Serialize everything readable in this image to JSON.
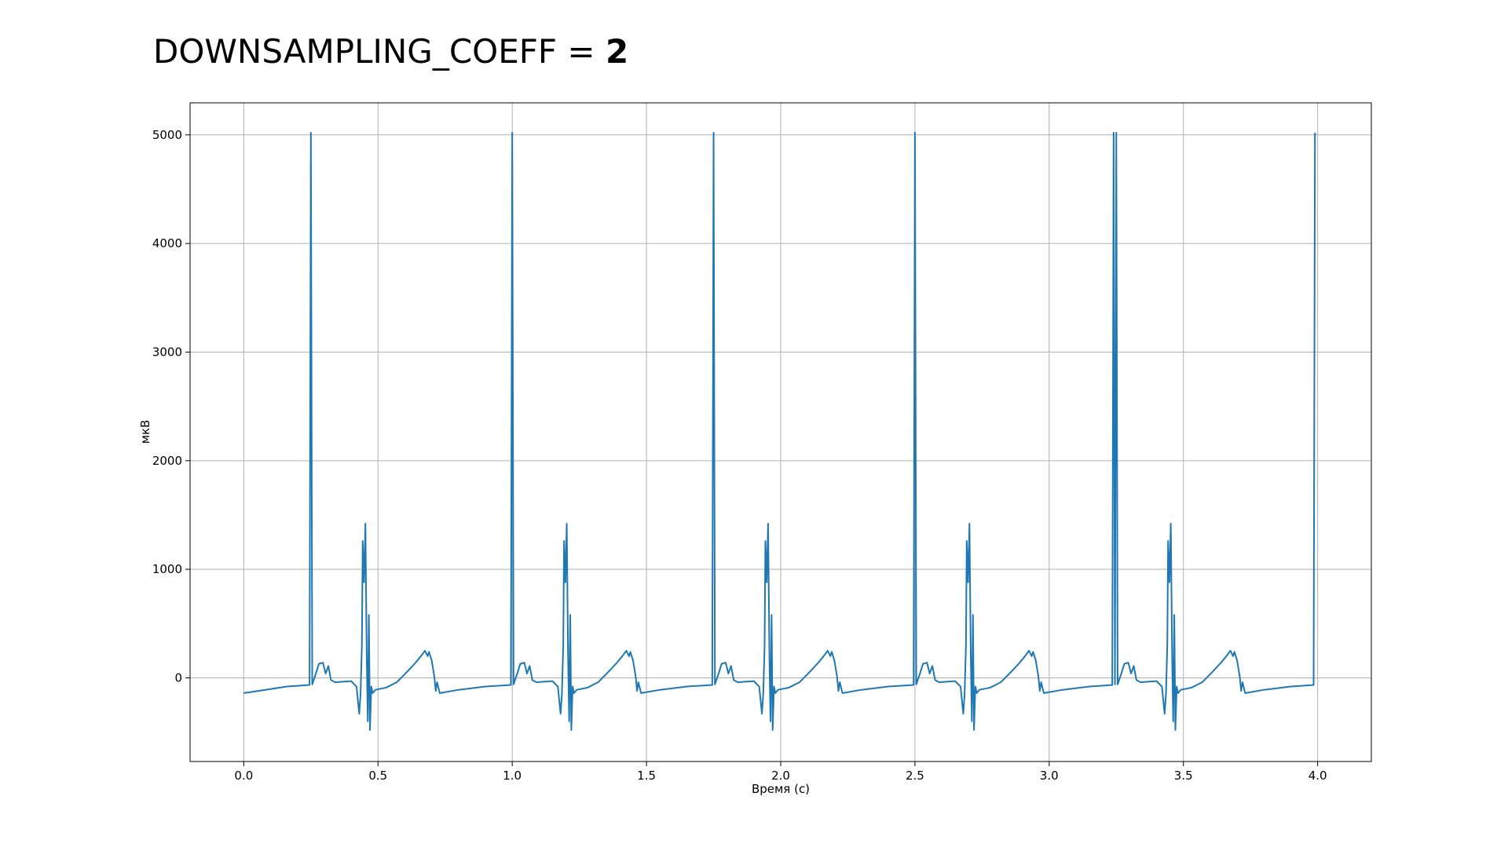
{
  "chart_data": {
    "type": "line",
    "title": "DOWNSAMPLING_COEFF = ",
    "title_value": 2,
    "x_label": "Время (с)",
    "y_label": "мкВ",
    "color": "#1f77b4",
    "grid": true,
    "xlim": [
      -0.2,
      4.2
    ],
    "ylim": [
      -770,
      5295
    ],
    "xticks": [
      {
        "value": 0,
        "label": "0.0"
      },
      0.5,
      {
        "value": 1,
        "label": "1.0"
      },
      1.5,
      {
        "value": 2,
        "label": "2.0"
      },
      2.5,
      {
        "value": 3,
        "label": "3.0"
      },
      3.5,
      {
        "value": 4,
        "label": "4.0"
      }
    ],
    "yticks": [
      0,
      1000,
      2000,
      3000,
      4000,
      5000
    ],
    "x": [
      0,
      0.08,
      0.16,
      0.245,
      0.25,
      0.255,
      0.27,
      0.28,
      0.295,
      0.305,
      0.315,
      0.325,
      0.34,
      0.4,
      0.42,
      0.43,
      0.435,
      0.44,
      0.443,
      0.448,
      0.453,
      0.458,
      0.462,
      0.466,
      0.47,
      0.475,
      0.48,
      0.49,
      0.53,
      0.57,
      0.61,
      0.64,
      0.66,
      0.675,
      0.685,
      0.69,
      0.7,
      0.71,
      0.715,
      0.72,
      0.73,
      0.8,
      0.9,
      0.995,
      1.0,
      1.005,
      1.02,
      1.03,
      1.045,
      1.055,
      1.065,
      1.075,
      1.09,
      1.15,
      1.17,
      1.18,
      1.185,
      1.19,
      1.193,
      1.198,
      1.203,
      1.208,
      1.212,
      1.216,
      1.22,
      1.225,
      1.23,
      1.24,
      1.28,
      1.32,
      1.36,
      1.39,
      1.41,
      1.425,
      1.435,
      1.44,
      1.45,
      1.46,
      1.465,
      1.47,
      1.48,
      1.55,
      1.65,
      1.745,
      1.75,
      1.755,
      1.77,
      1.78,
      1.795,
      1.805,
      1.815,
      1.825,
      1.84,
      1.9,
      1.92,
      1.93,
      1.935,
      1.94,
      1.943,
      1.948,
      1.953,
      1.958,
      1.962,
      1.966,
      1.97,
      1.975,
      1.98,
      1.99,
      2.03,
      2.07,
      2.11,
      2.14,
      2.16,
      2.175,
      2.185,
      2.19,
      2.2,
      2.21,
      2.215,
      2.22,
      2.23,
      2.3,
      2.4,
      2.495,
      2.5,
      2.505,
      2.52,
      2.53,
      2.545,
      2.555,
      2.565,
      2.575,
      2.59,
      2.65,
      2.67,
      2.68,
      2.685,
      2.69,
      2.693,
      2.698,
      2.703,
      2.708,
      2.712,
      2.716,
      2.72,
      2.725,
      2.73,
      2.74,
      2.78,
      2.82,
      2.86,
      2.89,
      2.91,
      2.925,
      2.935,
      2.94,
      2.95,
      2.96,
      2.965,
      2.97,
      2.98,
      3.05,
      3.15,
      3.235,
      3.24,
      3.245,
      3.25,
      3.255,
      3.27,
      3.28,
      3.295,
      3.305,
      3.315,
      3.325,
      3.34,
      3.4,
      3.42,
      3.43,
      3.435,
      3.44,
      3.443,
      3.448,
      3.453,
      3.458,
      3.462,
      3.466,
      3.47,
      3.475,
      3.48,
      3.49,
      3.53,
      3.57,
      3.61,
      3.64,
      3.66,
      3.675,
      3.685,
      3.69,
      3.7,
      3.71,
      3.715,
      3.72,
      3.73,
      3.8,
      3.9,
      3.985,
      3.99
    ],
    "values": [
      -140,
      -110,
      -80,
      -65,
      5020,
      -60,
      50,
      130,
      140,
      40,
      110,
      -20,
      -40,
      -30,
      -80,
      -330,
      -150,
      300,
      1260,
      880,
      1420,
      200,
      -400,
      580,
      -480,
      -80,
      -140,
      -110,
      -90,
      -40,
      60,
      140,
      200,
      250,
      200,
      240,
      160,
      10,
      -120,
      -40,
      -140,
      -110,
      -80,
      -65,
      5020,
      -60,
      50,
      130,
      140,
      40,
      110,
      -20,
      -40,
      -30,
      -80,
      -330,
      -150,
      300,
      1260,
      880,
      1420,
      200,
      -400,
      580,
      -480,
      -80,
      -140,
      -110,
      -90,
      -40,
      60,
      140,
      200,
      250,
      200,
      240,
      160,
      10,
      -120,
      -40,
      -140,
      -110,
      -80,
      -65,
      5020,
      -60,
      50,
      130,
      140,
      40,
      110,
      -20,
      -40,
      -30,
      -80,
      -330,
      -150,
      300,
      1260,
      880,
      1420,
      200,
      -400,
      580,
      -480,
      -80,
      -140,
      -110,
      -90,
      -40,
      60,
      140,
      200,
      250,
      200,
      240,
      160,
      10,
      -120,
      -40,
      -140,
      -110,
      -80,
      -65,
      5020,
      -60,
      50,
      130,
      140,
      40,
      110,
      -20,
      -40,
      -30,
      -80,
      -330,
      -150,
      300,
      1260,
      880,
      1420,
      200,
      -400,
      580,
      -480,
      -80,
      -140,
      -110,
      -90,
      -40,
      60,
      140,
      200,
      250,
      200,
      240,
      160,
      10,
      -120,
      -40,
      -140,
      -110,
      -80,
      -65,
      5020,
      -60,
      5020,
      -60,
      50,
      130,
      140,
      40,
      110,
      -20,
      -40,
      -30,
      -80,
      -330,
      -150,
      300,
      1260,
      880,
      1420,
      200,
      -400,
      580,
      -480,
      -80,
      -140,
      -110,
      -90,
      -40,
      60,
      140,
      200,
      250,
      200,
      240,
      160,
      10,
      -120,
      -40,
      -140,
      -110,
      -80,
      -65,
      5020
    ]
  }
}
